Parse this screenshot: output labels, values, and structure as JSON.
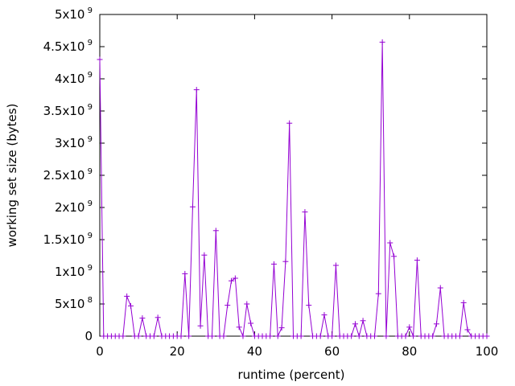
{
  "chart_data": {
    "type": "line",
    "title": "",
    "xlabel": "runtime (percent)",
    "ylabel": "working set size (bytes)",
    "xlim": [
      0,
      100
    ],
    "ylim": [
      0,
      5000000000
    ],
    "x_ticks": [
      0,
      20,
      40,
      60,
      80,
      100
    ],
    "x_tick_labels": [
      "0",
      "20",
      "40",
      "60",
      "80",
      "100"
    ],
    "y_ticks": [
      0,
      500000000,
      1000000000,
      1500000000,
      2000000000,
      2500000000,
      3000000000,
      3500000000,
      4000000000,
      4500000000,
      5000000000
    ],
    "y_tick_labels": [
      {
        "base": "0",
        "exp": ""
      },
      {
        "base": "5x10",
        "exp": "8"
      },
      {
        "base": "1x10",
        "exp": "9"
      },
      {
        "base": "1.5x10",
        "exp": "9"
      },
      {
        "base": "2x10",
        "exp": "9"
      },
      {
        "base": "2.5x10",
        "exp": "9"
      },
      {
        "base": "3x10",
        "exp": "9"
      },
      {
        "base": "3.5x10",
        "exp": "9"
      },
      {
        "base": "4x10",
        "exp": "9"
      },
      {
        "base": "4.5x10",
        "exp": "9"
      },
      {
        "base": "5x10",
        "exp": "9"
      }
    ],
    "grid": false,
    "marker": "plus",
    "series_color": "#9400d3",
    "series": [
      {
        "name": "",
        "x": [
          0,
          1,
          2,
          3,
          4,
          5,
          6,
          7,
          8,
          9,
          10,
          11,
          12,
          13,
          14,
          15,
          16,
          17,
          18,
          19,
          20,
          21,
          22,
          23,
          24,
          25,
          26,
          27,
          28,
          29,
          30,
          31,
          32,
          33,
          34,
          35,
          36,
          37,
          38,
          39,
          40,
          41,
          42,
          43,
          44,
          45,
          46,
          47,
          48,
          49,
          50,
          51,
          52,
          53,
          54,
          55,
          56,
          57,
          58,
          59,
          60,
          61,
          62,
          63,
          64,
          65,
          66,
          67,
          68,
          69,
          70,
          71,
          72,
          73,
          74,
          75,
          76,
          77,
          78,
          79,
          80,
          81,
          82,
          83,
          84,
          85,
          86,
          87,
          88,
          89,
          90,
          91,
          92,
          93,
          94,
          95,
          96,
          97,
          98,
          99,
          100
        ],
        "y": [
          4300000000,
          0,
          0,
          0,
          0,
          0,
          0,
          620000000,
          470000000,
          0,
          0,
          280000000,
          0,
          0,
          0,
          290000000,
          0,
          0,
          0,
          0,
          0,
          0,
          970000000,
          0,
          2010000000,
          3830000000,
          160000000,
          1260000000,
          0,
          0,
          1640000000,
          0,
          0,
          480000000,
          860000000,
          900000000,
          140000000,
          0,
          500000000,
          200000000,
          0,
          0,
          0,
          0,
          0,
          1120000000,
          0,
          130000000,
          1160000000,
          3310000000,
          0,
          0,
          0,
          1930000000,
          480000000,
          0,
          0,
          0,
          330000000,
          0,
          0,
          1100000000,
          0,
          0,
          0,
          0,
          190000000,
          0,
          240000000,
          0,
          0,
          0,
          660000000,
          4570000000,
          0,
          1450000000,
          1240000000,
          0,
          0,
          0,
          140000000,
          0,
          1180000000,
          0,
          0,
          0,
          0,
          190000000,
          750000000,
          0,
          0,
          0,
          0,
          0,
          520000000,
          100000000,
          0,
          0,
          0,
          0,
          0
        ]
      }
    ]
  }
}
